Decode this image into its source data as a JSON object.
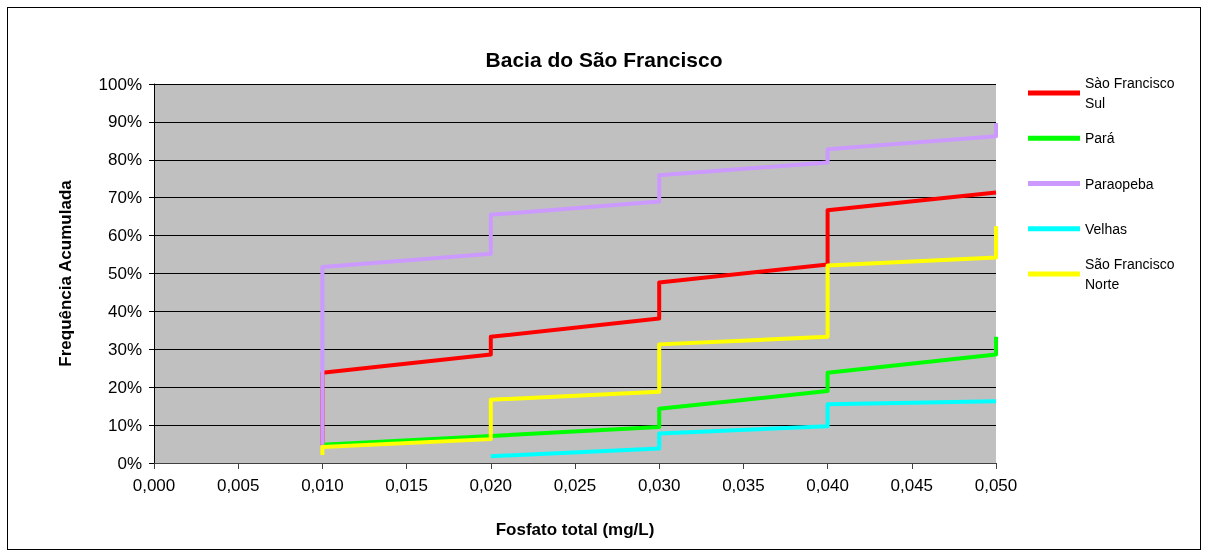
{
  "chart_data": {
    "type": "line",
    "title": "Bacia do São Francisco",
    "xlabel": "Fosfato total (mg/L)",
    "ylabel": "Frequência Acumulada",
    "xlim": [
      0,
      0.05
    ],
    "xticks": [
      {
        "value": 0,
        "label": "0,000"
      },
      {
        "value": 0.005,
        "label": "0,005"
      },
      {
        "value": 0.01,
        "label": "0,010"
      },
      {
        "value": 0.015,
        "label": "0,015"
      },
      {
        "value": 0.02,
        "label": "0,020"
      },
      {
        "value": 0.025,
        "label": "0,025"
      },
      {
        "value": 0.03,
        "label": "0,030"
      },
      {
        "value": 0.035,
        "label": "0,035"
      },
      {
        "value": 0.04,
        "label": "0,040"
      },
      {
        "value": 0.045,
        "label": "0,045"
      },
      {
        "value": 0.05,
        "label": "0,050"
      }
    ],
    "ylim": [
      0,
      100
    ],
    "yticks": [
      {
        "value": 0,
        "label": "0%"
      },
      {
        "value": 10,
        "label": "10%"
      },
      {
        "value": 20,
        "label": "20%"
      },
      {
        "value": 30,
        "label": "30%"
      },
      {
        "value": 40,
        "label": "40%"
      },
      {
        "value": 50,
        "label": "50%"
      },
      {
        "value": 60,
        "label": "60%"
      },
      {
        "value": 70,
        "label": "70%"
      },
      {
        "value": 80,
        "label": "80%"
      },
      {
        "value": 90,
        "label": "90%"
      },
      {
        "value": 100,
        "label": "100%"
      }
    ],
    "grid": "y",
    "legend": "right",
    "marker": "none",
    "line_style": "solid",
    "series": [
      {
        "name": "Sào Francisco Sul",
        "color": "#ff0000",
        "x": [
          0.01,
          0.01,
          0.02,
          0.02,
          0.03,
          0.03,
          0.04,
          0.04,
          0.05
        ],
        "values": [
          4.8,
          23.8,
          28.6,
          33.3,
          38.1,
          47.6,
          52.4,
          66.7,
          71.4
        ]
      },
      {
        "name": "Pará",
        "color": "#00ff00",
        "x": [
          0.01,
          0.03,
          0.03,
          0.04,
          0.04,
          0.05,
          0.05
        ],
        "values": [
          4.8,
          9.5,
          14.3,
          19.0,
          23.8,
          28.6,
          33.3
        ]
      },
      {
        "name": "Paraopeba",
        "color": "#cc99ff",
        "x": [
          0.01,
          0.01,
          0.02,
          0.02,
          0.03,
          0.03,
          0.04,
          0.04,
          0.05,
          0.05
        ],
        "values": [
          4.8,
          51.7,
          55.2,
          65.5,
          69.0,
          75.9,
          79.3,
          82.8,
          86.2,
          89.7
        ]
      },
      {
        "name": "Velhas",
        "color": "#00ffff",
        "x": [
          0.02,
          0.03,
          0.03,
          0.04,
          0.04,
          0.05
        ],
        "values": [
          1.8,
          3.8,
          7.8,
          9.7,
          15.5,
          16.3
        ]
      },
      {
        "name": "São Francisco Norte",
        "color": "#ffff00",
        "x": [
          0.01,
          0.01,
          0.02,
          0.02,
          0.03,
          0.03,
          0.04,
          0.04,
          0.05,
          0.05
        ],
        "values": [
          2.1,
          4.2,
          6.3,
          16.7,
          18.8,
          31.3,
          33.3,
          52.1,
          54.2,
          62.5
        ]
      }
    ]
  }
}
